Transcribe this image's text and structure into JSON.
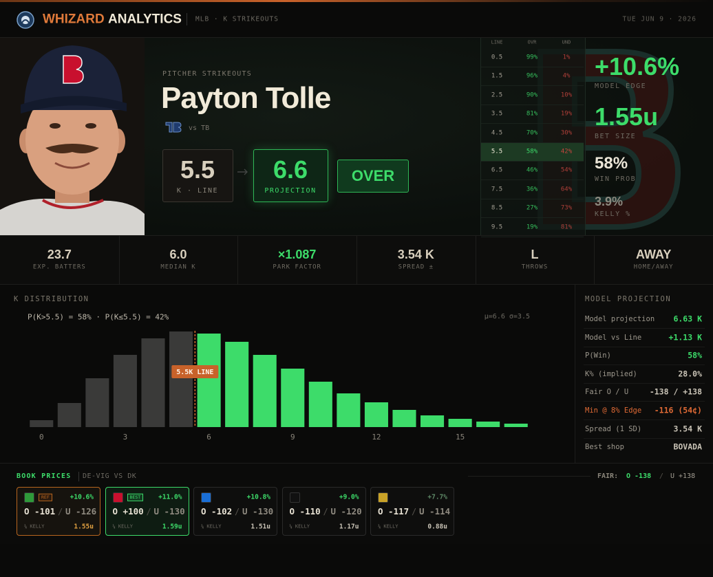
{
  "header": {
    "brand_primary": "WHIZARD",
    "brand_secondary": "ANALYTICS",
    "context": "MLB · K STRIKEOUTS",
    "date": "TUE JUN 9 · 2026"
  },
  "player": {
    "market": "PITCHER STRIKEOUTS",
    "name": "Payton Tolle",
    "opponent": "vs TB",
    "line": "5.5",
    "line_label": "K · LINE",
    "projection": "6.6",
    "projection_label": "PROJECTION",
    "pick": "OVER"
  },
  "line_table": {
    "headers": [
      "LINE",
      "OVR",
      "UND"
    ],
    "rows": [
      [
        "0.5",
        "99%",
        "1%"
      ],
      [
        "1.5",
        "96%",
        "4%"
      ],
      [
        "2.5",
        "90%",
        "10%"
      ],
      [
        "3.5",
        "81%",
        "19%"
      ],
      [
        "4.5",
        "70%",
        "30%"
      ],
      [
        "5.5",
        "58%",
        "42%"
      ],
      [
        "6.5",
        "46%",
        "54%"
      ],
      [
        "7.5",
        "36%",
        "64%"
      ],
      [
        "8.5",
        "27%",
        "73%"
      ],
      [
        "9.5",
        "19%",
        "81%"
      ]
    ],
    "highlight_row": 5
  },
  "edge_metrics": [
    {
      "value": "+10.6%",
      "label": "MODEL EDGE",
      "color": "#3ddc6a"
    },
    {
      "value": "1.55u",
      "label": "BET SIZE",
      "color": "#3ddc6a"
    },
    {
      "value": "58%",
      "label": "WIN PROB",
      "color": "#ece6d8"
    },
    {
      "value": "3.9%",
      "label": "KELLY %",
      "color": "#8c8a80"
    }
  ],
  "stats": [
    {
      "value": "23.7",
      "label": "EXP. BATTERS",
      "color": "#d8cfbd"
    },
    {
      "value": "6.0",
      "label": "MEDIAN K",
      "color": "#d8cfbd"
    },
    {
      "value": "×1.087",
      "label": "PARK FACTOR",
      "color": "#3ddc6a"
    },
    {
      "value": "3.54 K",
      "label": "SPREAD ±",
      "color": "#d8cfbd"
    },
    {
      "value": "L",
      "label": "THROWS",
      "color": "#d8cfbd"
    },
    {
      "value": "AWAY",
      "label": "HOME/AWAY",
      "color": "#d8cfbd"
    }
  ],
  "chart_data": {
    "type": "bar",
    "title": "K DISTRIBUTION",
    "subtitle": "P(K>5.5) = 58% · P(K≤5.5) = 42%",
    "annotation": "μ=6.6 σ=3.5",
    "x": [
      0,
      1,
      2,
      3,
      4,
      5,
      6,
      7,
      8,
      9,
      10,
      11,
      12,
      13,
      14,
      15,
      16,
      17
    ],
    "values": [
      1.0,
      3.5,
      7.1,
      10.5,
      12.9,
      13.9,
      13.6,
      12.4,
      10.5,
      8.5,
      6.6,
      4.9,
      3.6,
      2.5,
      1.7,
      1.2,
      0.8,
      0.5
    ],
    "xlim": [
      -0.5,
      17.5
    ],
    "xticks": [
      0,
      3,
      6,
      9,
      12,
      15
    ],
    "ylim": [
      0,
      14
    ],
    "line_marker": {
      "value": 5.5,
      "label": "5.5K LINE"
    },
    "colors": {
      "under": "#3a3a39",
      "over": "#3ddc6a"
    }
  },
  "model_projection": {
    "title": "MODEL PROJECTION",
    "rows": [
      {
        "label": "Model projection",
        "value": "6.63 K",
        "color": "#3ddc6a"
      },
      {
        "label": "Model vs Line",
        "value": "+1.13 K",
        "color": "#3ddc6a"
      },
      {
        "label": "P(Win)",
        "value": "58%",
        "color": "#3ddc6a"
      },
      {
        "label": "K% (implied)",
        "value": "28.0%",
        "color": "#c9c3b6"
      },
      {
        "label": "Fair O / U",
        "value": "-138 / +138",
        "color": "#c9c3b6"
      },
      {
        "label": "Min @ 8% Edge",
        "value": "-116 (54¢)",
        "color": "#e06a35"
      },
      {
        "label": "Spread (1 SD)",
        "value": "3.54 K",
        "color": "#c9c3b6"
      },
      {
        "label": "Best shop",
        "value": "BOVADA",
        "color": "#c9c3b6"
      }
    ]
  },
  "book_prices": {
    "title": "BOOK PRICES",
    "subtitle": "DE-VIG VS DK",
    "fair_label": "FAIR:",
    "fair_over": "O -138",
    "separator": "/",
    "fair_under": "U +138",
    "kelly_label": "¼ KELLY",
    "books": [
      {
        "badge": "REF",
        "edge": "+10.6%",
        "over": "O -101",
        "under": "U -126",
        "kelly": "1.55u",
        "border_color": "#b8661f"
      },
      {
        "badge": "BEST",
        "edge": "+11.0%",
        "over": "O +100",
        "under": "U -130",
        "kelly": "1.59u",
        "border_color": "#3ddc6a"
      },
      {
        "edge": "+10.8%",
        "over": "O -102",
        "under": "U -130",
        "kelly": "1.51u",
        "border_color": "#2a2a2a"
      },
      {
        "edge": "+9.0%",
        "over": "O -110",
        "under": "U -120",
        "kelly": "1.17u",
        "border_color": "#2a2a2a"
      },
      {
        "edge": "+7.7%",
        "over": "O -117",
        "under": "U -114",
        "kelly": "0.88u",
        "border_color": "#2a2a2a"
      }
    ]
  }
}
